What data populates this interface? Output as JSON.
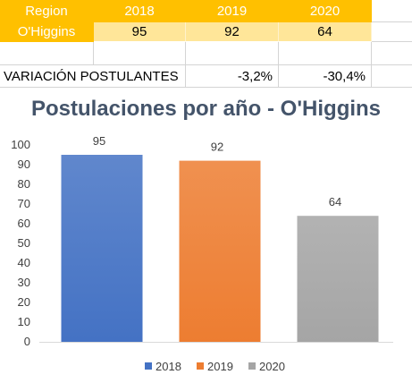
{
  "table": {
    "headers": [
      "Region",
      "2018",
      "2019",
      "2020"
    ],
    "row": {
      "label": "O'Higgins",
      "values": [
        "95",
        "92",
        "64"
      ]
    },
    "variation": {
      "label": "VARIACIÓN POSTULANTES",
      "values": [
        "-3,2%",
        "-30,4%"
      ]
    }
  },
  "colors": {
    "header_bg": "#ffc000",
    "data_bg": "#ffe699",
    "bar_2018": "#4472c4",
    "bar_2019": "#ed7d31",
    "bar_2020": "#a5a5a5"
  },
  "chart_data": {
    "type": "bar",
    "title": "Postulaciones por año - O'Higgins",
    "categories": [
      "2018",
      "2019",
      "2020"
    ],
    "values": [
      95,
      92,
      64
    ],
    "data_labels": [
      "95",
      "92",
      "64"
    ],
    "colors": [
      "#4472c4",
      "#ed7d31",
      "#a5a5a5"
    ],
    "ylim": [
      0,
      100
    ],
    "yticks": [
      0,
      10,
      20,
      30,
      40,
      50,
      60,
      70,
      80,
      90,
      100
    ],
    "ytick_labels": [
      "0",
      "10",
      "20",
      "30",
      "40",
      "50",
      "60",
      "70",
      "80",
      "90",
      "100"
    ],
    "legend": [
      "2018",
      "2019",
      "2020"
    ],
    "legend_position": "bottom",
    "grid": false,
    "xlabel": "",
    "ylabel": ""
  }
}
